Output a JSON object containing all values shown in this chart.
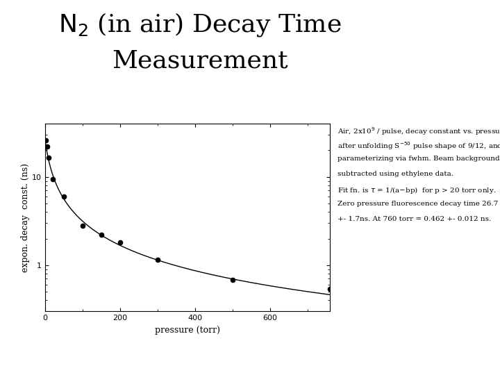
{
  "xlabel": "pressure (torr)",
  "ylabel": "expon. decay  const. (ns)",
  "data_x": [
    2,
    5,
    10,
    20,
    50,
    100,
    150,
    200,
    300,
    500,
    760
  ],
  "data_y": [
    26.0,
    22.0,
    16.5,
    9.5,
    6.0,
    2.8,
    2.2,
    1.8,
    1.15,
    0.68,
    0.54
  ],
  "fit_a": 0.03745,
  "fit_b": 0.002798,
  "xlim": [
    0,
    760
  ],
  "ylim_log": [
    0.3,
    40
  ],
  "annotation_parts": [
    [
      "Air, 2x10",
      "9",
      " / pulse, decay constant vs. pressure"
    ],
    [
      "after unfolding S",
      "-50",
      " pulse shape of 9/12, and"
    ],
    [
      "parameterizing via fwhm. Beam background",
      "",
      ""
    ],
    [
      "subtracted using ethylene data.",
      "",
      ""
    ],
    [
      "Fit fn. is τ = 1/(a−bp)  for p > 20 torr only.",
      "",
      ""
    ],
    [
      "Zero pressure fluorescence decay time 26.7",
      "",
      ""
    ],
    [
      "+- 1.7ns. At 760 torr = 0.462 +- 0.012 ns.",
      "",
      ""
    ]
  ],
  "bg_color": "#ffffff",
  "plot_color": "#000000",
  "title_fontsize": 26,
  "axis_fontsize": 8,
  "label_fontsize": 9,
  "annot_fontsize": 7.5
}
